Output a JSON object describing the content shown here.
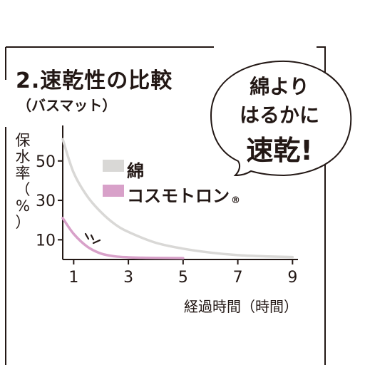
{
  "chart_data": {
    "type": "line",
    "title": "2.速乾性の比較",
    "subtitle": "（バスマット）",
    "ylabel_chars": [
      "保",
      "水",
      "率",
      "（",
      "%",
      "）"
    ],
    "xlabel": "経過時間（時間）",
    "xlim": [
      0.6,
      9.2
    ],
    "ylim": [
      0,
      68
    ],
    "x_ticks": [
      1,
      3,
      5,
      7,
      9
    ],
    "y_ticks": [
      10,
      30,
      50
    ],
    "series": [
      {
        "name": "綿",
        "color": "#d9d8d6",
        "x": [
          0.6,
          1,
          1.5,
          2,
          2.5,
          3,
          4,
          5,
          6,
          7,
          8,
          9
        ],
        "y": [
          61,
          44,
          32,
          24,
          18,
          14,
          8.5,
          5.5,
          3.5,
          2.2,
          1.6,
          1.2
        ]
      },
      {
        "name": "コスモトロン",
        "color": "#d8a1c9",
        "x": [
          0.6,
          1,
          1.5,
          2,
          2.5,
          3,
          3.5,
          4,
          5
        ],
        "y": [
          21,
          13,
          6.5,
          3,
          1.6,
          1.1,
          0.9,
          0.8,
          0.7
        ]
      }
    ],
    "registered_mark": "®",
    "grid": false,
    "legend": "inside-top"
  },
  "callout": {
    "lines": [
      "綿より",
      "はるかに",
      "速乾!"
    ]
  },
  "colors": {
    "ink": "#231815",
    "cotton": "#d9d8d6",
    "cosmotron": "#d8a1c9"
  }
}
